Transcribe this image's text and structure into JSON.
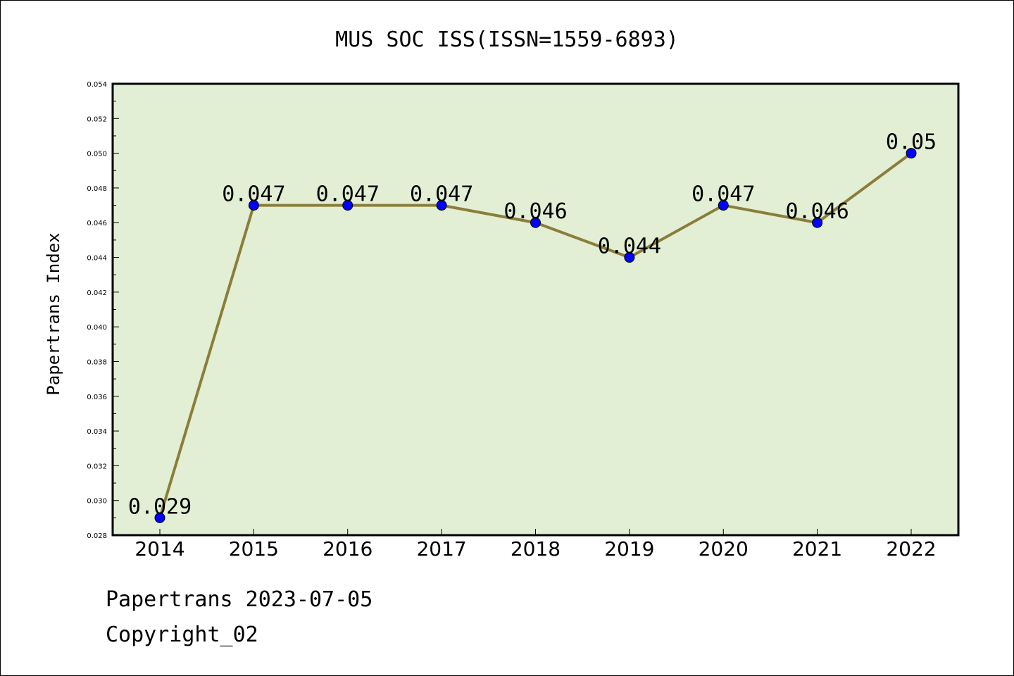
{
  "chart_data": {
    "type": "line",
    "title": "MUS SOC ISS(ISSN=1559-6893)",
    "xlabel": "",
    "ylabel": "Papertrans Index",
    "categories": [
      "2014",
      "2015",
      "2016",
      "2017",
      "2018",
      "2019",
      "2020",
      "2021",
      "2022"
    ],
    "series": [
      {
        "values": [
          0.029,
          0.047,
          0.047,
          0.047,
          0.046,
          0.044,
          0.047,
          0.046,
          0.05
        ],
        "labels": [
          "0.029",
          "0.047",
          "0.047",
          "0.047",
          "0.046",
          "0.044",
          "0.047",
          "0.046",
          "0.05"
        ]
      }
    ],
    "ylim": [
      0.028,
      0.054
    ],
    "yticks": [
      "0.028",
      "0.030",
      "0.032",
      "0.034",
      "0.036",
      "0.038",
      "0.040",
      "0.042",
      "0.044",
      "0.046",
      "0.048",
      "0.050",
      "0.052",
      "0.054"
    ],
    "grid": false,
    "legend": "none",
    "colors": {
      "plot_background": "#e2efd4",
      "line": "#8b7d3a",
      "marker": "#0000ff"
    }
  },
  "footer": {
    "line1": "Papertrans 2023-07-05",
    "line2": "Copyright_02"
  }
}
